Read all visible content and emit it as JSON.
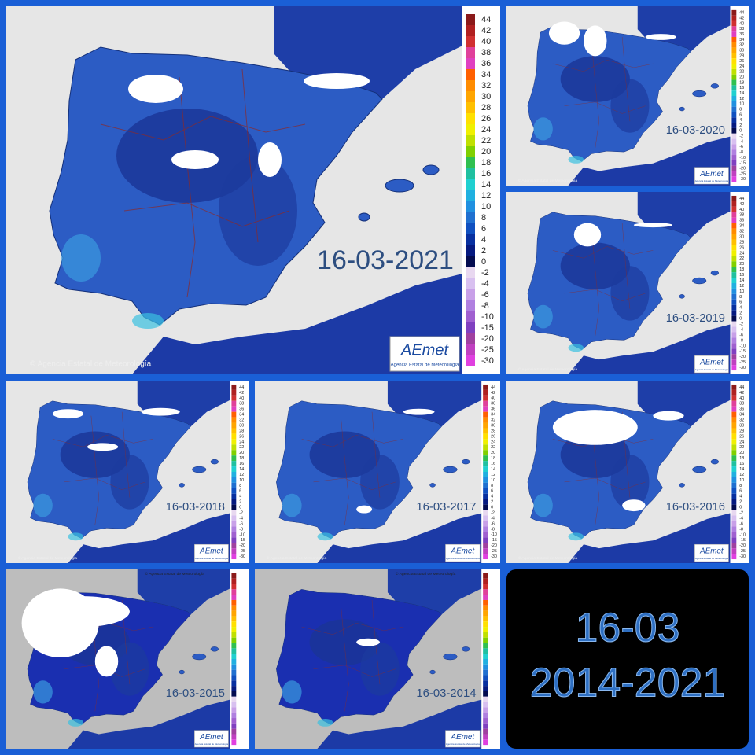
{
  "panels": [
    {
      "date": "16-03-2021"
    },
    {
      "date": "16-03-2020"
    },
    {
      "date": "16-03-2019"
    },
    {
      "date": "16-03-2018"
    },
    {
      "date": "16-03-2017"
    },
    {
      "date": "16-03-2016"
    },
    {
      "date": "16-03-2015"
    },
    {
      "date": "16-03-2014"
    }
  ],
  "legend_ticks": [
    44,
    42,
    40,
    38,
    36,
    34,
    32,
    30,
    28,
    26,
    24,
    22,
    20,
    18,
    16,
    14,
    12,
    10,
    8,
    6,
    4,
    2,
    0,
    -2,
    -4,
    -6,
    -8,
    -10,
    -15,
    -20,
    -25,
    -30
  ],
  "credit": "© Agencia Estatal de Meteorología",
  "logo": {
    "name": "AEmet",
    "caption": "Agencia Estatal de Meteorología"
  },
  "summary": {
    "day": "16-03",
    "years": "2014-2021"
  }
}
